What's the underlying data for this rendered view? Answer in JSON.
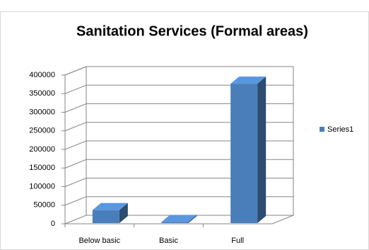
{
  "chart_data": {
    "type": "bar3d",
    "title": "Sanitation Services (Formal areas)",
    "categories": [
      "Below basic",
      "Basic",
      "Full"
    ],
    "series": [
      {
        "name": "Series1",
        "color": "#4a7ebb",
        "values": [
          35000,
          3000,
          375000
        ]
      }
    ],
    "ylim": [
      0,
      400000
    ],
    "yticks": [
      0,
      50000,
      100000,
      150000,
      200000,
      250000,
      300000,
      350000,
      400000
    ],
    "grid": true,
    "legend": "right"
  }
}
